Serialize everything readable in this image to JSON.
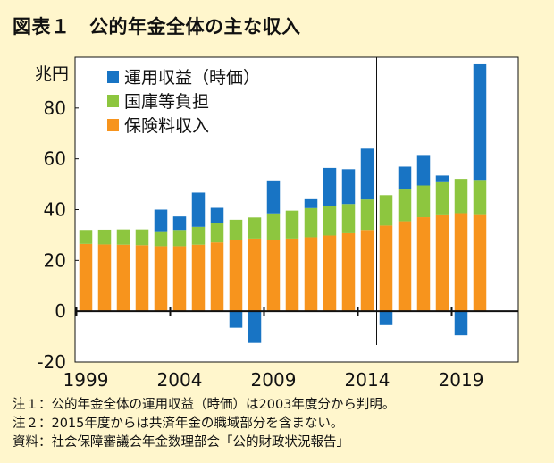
{
  "title": "図表１　公的年金全体の主な収入",
  "notes": [
    "注１：公的年金全体の運用収益（時価）は2003年度分から判明。",
    "注２：2015年度からは共済年金の職域部分を含まない。",
    "資料：社会保障審議会年金数理部会「公的財政状況報告」"
  ],
  "chart_data": {
    "type": "bar",
    "stacked": true,
    "unit_label": "兆円",
    "ylim": [
      -20,
      100
    ],
    "yticks": [
      -20,
      0,
      20,
      40,
      60,
      80
    ],
    "xtick_labels": [
      "1999",
      "2004",
      "2009",
      "2014",
      "2019"
    ],
    "categories": [
      "1999",
      "2000",
      "2001",
      "2002",
      "2003",
      "2004",
      "2005",
      "2006",
      "2007",
      "2008",
      "2009",
      "2010",
      "2011",
      "2012",
      "2013",
      "2014",
      "2015",
      "2016",
      "2017",
      "2018",
      "2019",
      "2020"
    ],
    "divider_between": [
      "2014",
      "2015"
    ],
    "series": [
      {
        "name": "保険料収入",
        "color": "#F7941D",
        "values": [
          26.5,
          26.3,
          26.2,
          26.0,
          25.6,
          25.6,
          26.2,
          27.1,
          28.0,
          28.6,
          28.2,
          28.6,
          29.1,
          29.8,
          30.7,
          32.0,
          33.7,
          35.4,
          37.0,
          38.1,
          38.6,
          38.2
        ]
      },
      {
        "name": "国庫等負担",
        "color": "#8DC63F",
        "values": [
          5.5,
          5.8,
          6.0,
          6.2,
          5.9,
          6.4,
          7.0,
          7.6,
          8.0,
          8.3,
          10.3,
          11.0,
          11.5,
          11.6,
          11.5,
          12.0,
          12.0,
          12.5,
          12.5,
          12.7,
          13.5,
          13.5
        ]
      },
      {
        "name": "運用収益（時価）",
        "color": "#1874C4",
        "values": [
          null,
          null,
          null,
          null,
          8.5,
          5.3,
          13.5,
          6.0,
          -6.5,
          -12.5,
          13.0,
          0.0,
          3.5,
          15.0,
          13.7,
          20.0,
          -5.5,
          9.0,
          12.0,
          2.6,
          -9.5,
          45.5
        ]
      }
    ],
    "legend_position": "top-left"
  }
}
